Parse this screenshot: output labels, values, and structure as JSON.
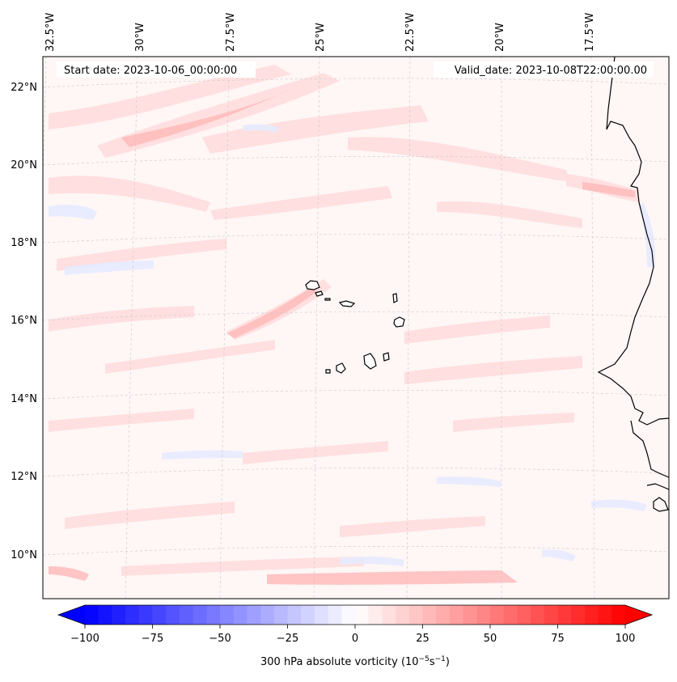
{
  "map": {
    "start_label": "Start date: 2023-10-06_00:00:00",
    "valid_label": "Valid_date: 2023-10-08T22:00:00.00",
    "lon_labels": [
      "32.5°W",
      "30°W",
      "27.5°W",
      "25°W",
      "22.5°W",
      "20°W",
      "17.5°W"
    ],
    "lat_labels": [
      "22°N",
      "20°N",
      "18°N",
      "16°N",
      "14°N",
      "12°N",
      "10°N"
    ]
  },
  "colorbar": {
    "ticks": [
      "−100",
      "−75",
      "−50",
      "−25",
      "0",
      "25",
      "50",
      "75",
      "100"
    ],
    "label_main": "300 hPa absolute vorticity (10",
    "label_sup1": "−5",
    "label_mid": "s",
    "label_sup2": "−1",
    "label_end": ")",
    "min_color": "#0000ff",
    "mid_color": "#ffffff",
    "max_color": "#ff0000"
  },
  "field": {
    "background_color": "#fff5f5",
    "positive_color": "#ffcccc",
    "negative_color": "#e3e8ff",
    "coastline_color": "#000000"
  }
}
